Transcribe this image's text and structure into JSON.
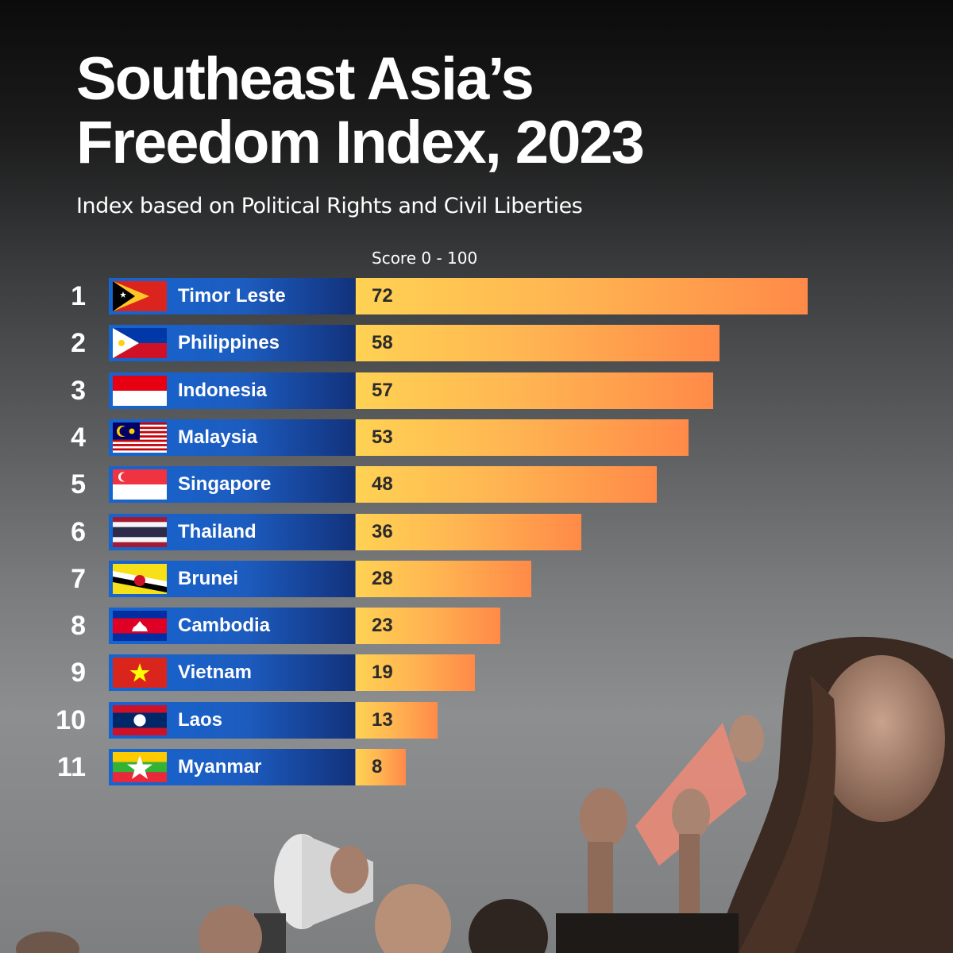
{
  "title_line1": "Southeast Asia’s",
  "title_line2": "Freedom Index, 2023",
  "subtitle": "Index based on Political Rights and Civil Liberties",
  "score_label": "Score 0 - 100",
  "colors": {
    "label_box": "#1d5cbf",
    "bar_start": "#ffd253",
    "bar_end": "#ff8a48",
    "text": "#ffffff"
  },
  "chart_data": {
    "type": "bar",
    "orientation": "horizontal",
    "title": "Southeast Asia’s Freedom Index, 2023",
    "subtitle": "Index based on Political Rights and Civil Liberties",
    "xlabel": "Score 0 - 100",
    "xlim": [
      0,
      100
    ],
    "grid": false,
    "ranks": [
      "1",
      "2",
      "3",
      "4",
      "5",
      "6",
      "7",
      "8",
      "9",
      "10",
      "11"
    ],
    "categories": [
      "Timor Leste",
      "Philippines",
      "Indonesia",
      "Malaysia",
      "Singapore",
      "Thailand",
      "Brunei",
      "Cambodia",
      "Vietnam",
      "Laos",
      "Myanmar"
    ],
    "flags": [
      "timor-leste-flag-icon",
      "philippines-flag-icon",
      "indonesia-flag-icon",
      "malaysia-flag-icon",
      "singapore-flag-icon",
      "thailand-flag-icon",
      "brunei-flag-icon",
      "cambodia-flag-icon",
      "vietnam-flag-icon",
      "laos-flag-icon",
      "myanmar-flag-icon"
    ],
    "values": [
      72,
      58,
      57,
      53,
      48,
      36,
      28,
      23,
      19,
      13,
      8
    ]
  }
}
